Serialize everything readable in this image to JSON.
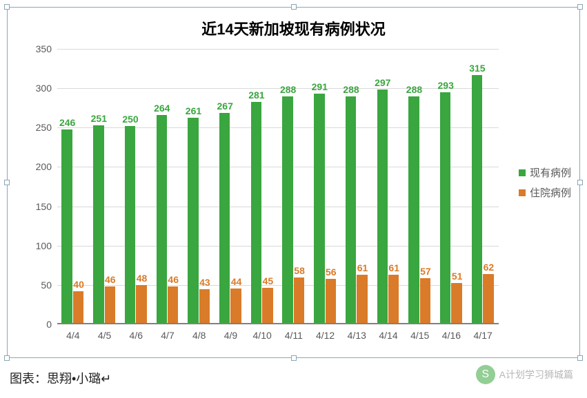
{
  "chart": {
    "type": "bar",
    "title": "近14天新加坡现有病例状况",
    "title_fontsize": 22,
    "title_fontweight": "bold",
    "title_color": "#000000",
    "categories": [
      "4/4",
      "4/5",
      "4/6",
      "4/7",
      "4/8",
      "4/9",
      "4/10",
      "4/11",
      "4/12",
      "4/13",
      "4/14",
      "4/15",
      "4/16",
      "4/17"
    ],
    "series": [
      {
        "name": "现有病例",
        "color": "#3aa63f",
        "label_color": "#3aa63f",
        "values": [
          246,
          251,
          250,
          264,
          261,
          267,
          281,
          288,
          291,
          288,
          297,
          288,
          293,
          315
        ]
      },
      {
        "name": "住院病例",
        "color": "#d97b29",
        "label_color": "#d97b29",
        "values": [
          40,
          46,
          48,
          46,
          43,
          44,
          45,
          58,
          56,
          61,
          61,
          57,
          51,
          62
        ]
      }
    ],
    "ylim": [
      0,
      350
    ],
    "ytick_step": 50,
    "yticks": [
      0,
      50,
      100,
      150,
      200,
      250,
      300,
      350
    ],
    "axis_fontsize": 14,
    "axis_color": "#595959",
    "grid_color": "#d9d9d9",
    "background_color": "#ffffff",
    "border_color": "#8aa6b5",
    "bar_group_width": 0.72,
    "label_fontsize": 14,
    "legend": {
      "position": "right",
      "fontsize": 15,
      "color": "#595959"
    }
  },
  "caption": "图表：思翔•小璐↵",
  "watermark": {
    "icon_label": "S",
    "text": "A计划学习狮城篇",
    "color": "#888888",
    "icon_bg": "#4caf50"
  }
}
